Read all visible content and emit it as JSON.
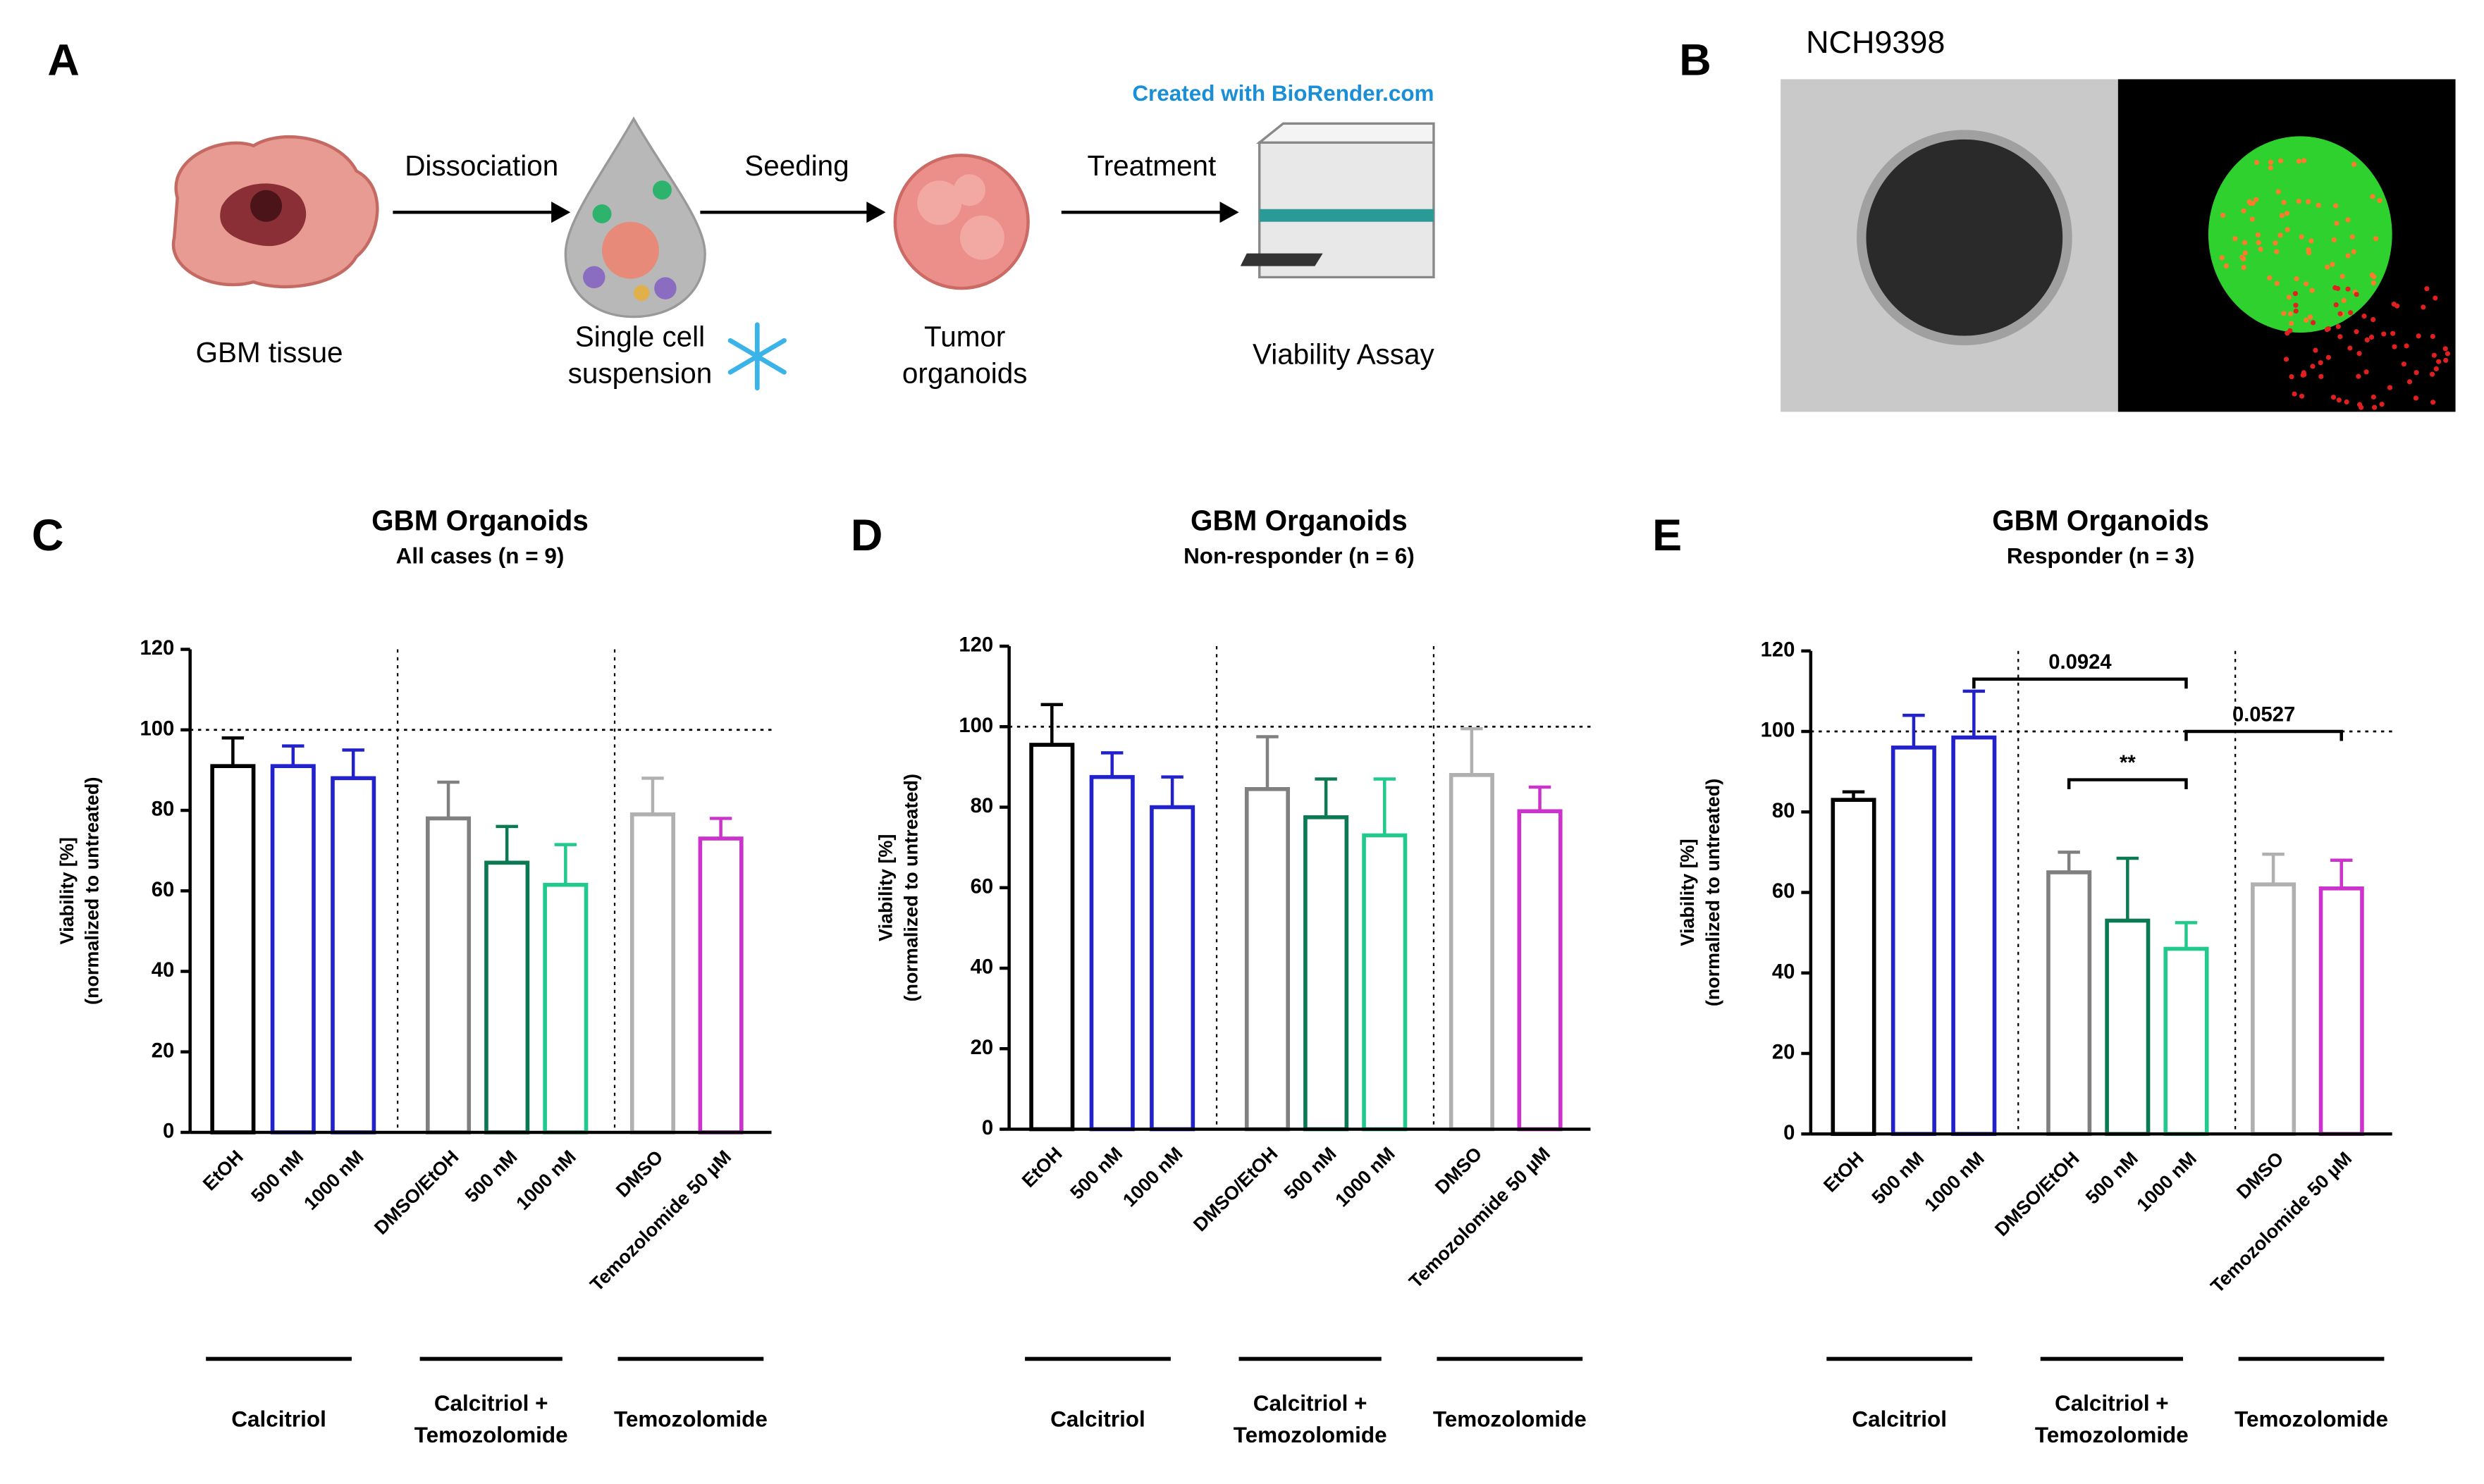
{
  "panels": {
    "A": {
      "label": "A",
      "credit": "Created with BioRender.com",
      "steps": [
        [
          "GBM tissue"
        ],
        [
          "Single cell",
          "suspension"
        ],
        [
          "Tumor",
          "organoids"
        ],
        [
          "Viability Assay"
        ]
      ],
      "arrows": [
        "Dissociation",
        "Seeding",
        "Treatment"
      ]
    },
    "B": {
      "label": "B",
      "title": "NCH9398"
    }
  },
  "chart_data": [
    {
      "type": "bar",
      "panel_label": "C",
      "title": "GBM Organoids",
      "subtitle": "All cases (n = 9)",
      "ylabel": [
        "Viability [%]",
        "(normalized to untreated)"
      ],
      "categories": [
        "EtOH",
        "500 nM",
        "1000 nM",
        "DMSO/EtOH",
        "500 nM",
        "1000 nM",
        "DMSO",
        "Temozolomide 50 µM"
      ],
      "values": [
        91,
        91,
        88,
        78,
        67,
        61.5,
        79,
        73
      ],
      "errors": [
        7,
        5,
        7,
        9,
        9,
        10,
        9,
        5
      ],
      "colors": [
        "#000000",
        "#2222cc",
        "#2222cc",
        "#808080",
        "#0b7a52",
        "#22c98c",
        "#b0b0b0",
        "#cc33cc"
      ],
      "groups": [
        [
          "Calcitriol"
        ],
        [
          "Calcitriol +",
          "Temozolomide"
        ],
        [
          "Temozolomide"
        ]
      ],
      "reference_line": 100,
      "ylim": [
        0,
        120
      ],
      "yticks": [
        0,
        20,
        40,
        60,
        80,
        100,
        120
      ],
      "brackets": []
    },
    {
      "type": "bar",
      "panel_label": "D",
      "title": "GBM Organoids",
      "subtitle": "Non-responder (n = 6)",
      "ylabel": [
        "Viability [%]",
        "(normalized to untreated)"
      ],
      "categories": [
        "EtOH",
        "500 nM",
        "1000 nM",
        "DMSO/EtOH",
        "500 nM",
        "1000 nM",
        "DMSO",
        "Temozolomide 50 µM"
      ],
      "values": [
        95.5,
        87.5,
        80,
        84.5,
        77.5,
        73,
        88,
        79
      ],
      "errors": [
        10,
        6,
        7.5,
        13,
        9.5,
        14,
        11.5,
        6
      ],
      "colors": [
        "#000000",
        "#2222cc",
        "#2222cc",
        "#808080",
        "#0b7a52",
        "#22c98c",
        "#b0b0b0",
        "#cc33cc"
      ],
      "groups": [
        [
          "Calcitriol"
        ],
        [
          "Calcitriol +",
          "Temozolomide"
        ],
        [
          "Temozolomide"
        ]
      ],
      "reference_line": 100,
      "ylim": [
        0,
        120
      ],
      "yticks": [
        0,
        20,
        40,
        60,
        80,
        100,
        120
      ],
      "brackets": []
    },
    {
      "type": "bar",
      "panel_label": "E",
      "title": "GBM Organoids",
      "subtitle": "Responder (n = 3)",
      "ylabel": [
        "Viability [%]",
        "(normalized to untreated)"
      ],
      "categories": [
        "EtOH",
        "500 nM",
        "1000 nM",
        "DMSO/EtOH",
        "500 nM",
        "1000 nM",
        "DMSO",
        "Temozolomide 50 µM"
      ],
      "values": [
        83,
        96,
        98.5,
        65,
        53,
        46,
        62,
        61
      ],
      "errors": [
        2,
        8,
        11.5,
        5,
        15.5,
        6.5,
        7.5,
        7
      ],
      "colors": [
        "#000000",
        "#2222cc",
        "#2222cc",
        "#808080",
        "#0b7a52",
        "#22c98c",
        "#b0b0b0",
        "#cc33cc"
      ],
      "groups": [
        [
          "Calcitriol"
        ],
        [
          "Calcitriol +",
          "Temozolomide"
        ],
        [
          "Temozolomide"
        ]
      ],
      "reference_line": 100,
      "ylim": [
        0,
        120
      ],
      "yticks": [
        0,
        20,
        40,
        60,
        80,
        100,
        120
      ],
      "brackets": [
        {
          "from": 2,
          "to": 5,
          "y": 113,
          "label": "0.0924"
        },
        {
          "from": 3,
          "to": 5,
          "y": 88,
          "label": "**"
        },
        {
          "from": 5,
          "to": 7,
          "y": 100,
          "label": "0.0527"
        }
      ]
    }
  ]
}
